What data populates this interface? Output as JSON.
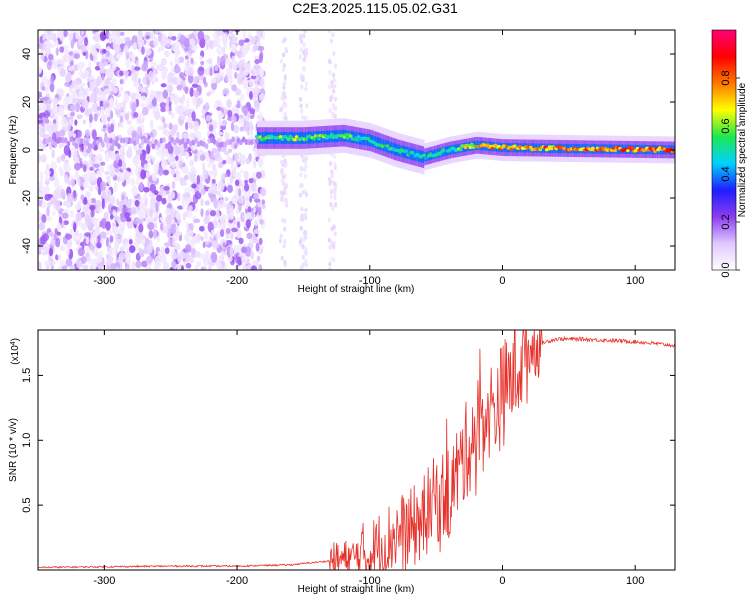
{
  "title": "C2E3.2025.115.05.02.G31",
  "chart_data": [
    {
      "type": "heatmap",
      "xlabel": "Height of straight line (km)",
      "ylabel": "Frequency (Hz)",
      "xlim": [
        -350,
        130
      ],
      "ylim": [
        -50,
        50
      ],
      "xticks": [
        -300,
        -200,
        -100,
        0,
        100
      ],
      "xtick_labels": [
        "-300",
        "-200",
        "-100",
        "0",
        "100"
      ],
      "yticks": [
        -40,
        -20,
        0,
        20,
        40
      ],
      "ytick_labels": [
        "-40",
        "-20",
        "0",
        "20",
        "40"
      ],
      "colorbar": {
        "label": "Normalized spectral amplitude",
        "range": [
          0,
          1
        ],
        "ticks": [
          0.0,
          0.2,
          0.4,
          0.6,
          0.8
        ],
        "tick_labels": [
          "0.0",
          "0.2",
          "0.4",
          "0.6",
          "0.8"
        ],
        "colormap": [
          "#ffffff",
          "#e0c8ff",
          "#8c3cf0",
          "#1e1eff",
          "#00d2ff",
          "#1ee650",
          "#ffff00",
          "#ff7800",
          "#ff0000",
          "#ff0078"
        ]
      },
      "ridge": {
        "description_x": [
          -180,
          -150,
          -120,
          -100,
          -80,
          -60,
          -40,
          -20,
          0,
          130
        ],
        "frequency": [
          5,
          5,
          6,
          4,
          0,
          -3,
          0,
          2,
          1,
          0
        ],
        "amplitude": [
          0.55,
          0.6,
          0.55,
          0.5,
          0.5,
          0.5,
          0.5,
          0.7,
          0.75,
          0.8
        ]
      }
    },
    {
      "type": "line",
      "xlabel": "Height of straight line (km)",
      "ylabel": "SNR (10 * v/v)",
      "scale_label": "(x10",
      "scale_exp": "4",
      "xlim": [
        -350,
        130
      ],
      "ylim": [
        0,
        1.85
      ],
      "xticks": [
        -300,
        -200,
        -100,
        0,
        100
      ],
      "xtick_labels": [
        "-300",
        "-200",
        "-100",
        "0",
        "100"
      ],
      "yticks": [
        0.5,
        1.0,
        1.5
      ],
      "ytick_labels": [
        "0.5",
        "1.0",
        "1.5"
      ],
      "line_color": "#e8302a",
      "series": [
        {
          "x": [
            -350,
            -250,
            -200,
            -160,
            -140,
            -120,
            -100,
            -90,
            -80,
            -70,
            -60,
            -50,
            -40,
            -30,
            -20,
            -10,
            0,
            10,
            20,
            30,
            40,
            60,
            80,
            100,
            130
          ],
          "y": [
            0.02,
            0.03,
            0.03,
            0.04,
            0.06,
            0.08,
            0.12,
            0.2,
            0.28,
            0.3,
            0.4,
            0.55,
            0.6,
            0.85,
            1.1,
            1.2,
            1.35,
            1.55,
            1.7,
            1.75,
            1.78,
            1.78,
            1.77,
            1.76,
            1.73
          ]
        }
      ]
    }
  ]
}
